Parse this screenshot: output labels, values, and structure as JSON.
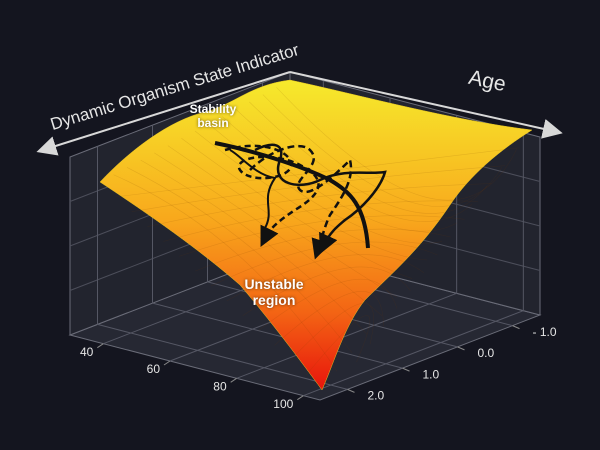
{
  "chart_data": {
    "type": "surface",
    "title": "Dynamic Organism State Indicator",
    "x_label": "Age",
    "xlim": [
      30,
      105
    ],
    "xticks": [
      40,
      60,
      80,
      100
    ],
    "ylim": [
      2.5,
      -1.5
    ],
    "yticks": [
      {
        "value": -1.0,
        "label": "- 1.0"
      },
      {
        "value": 0,
        "label": "0.0"
      },
      {
        "value": 1,
        "label": "1.0"
      },
      {
        "value": 2,
        "label": "2.0"
      }
    ],
    "grid": true,
    "annotations": [
      "Stability basin",
      "Unstable region"
    ]
  }
}
